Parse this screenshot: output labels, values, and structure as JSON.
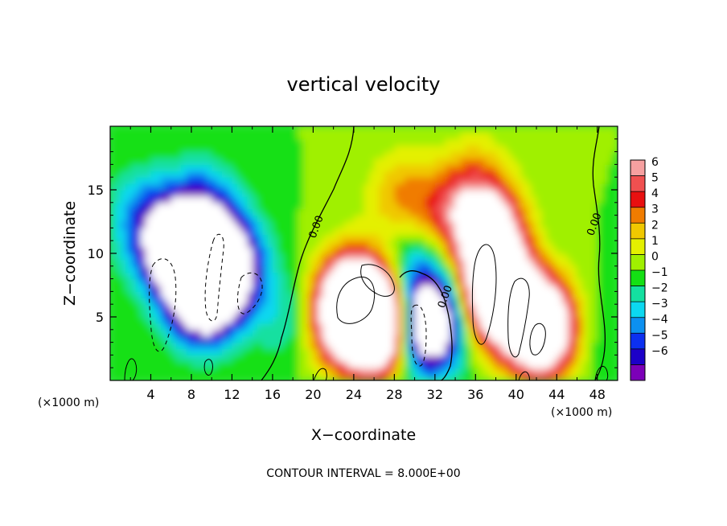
{
  "chart_data": {
    "type": "heatmap",
    "title": "vertical velocity",
    "xlabel": "X−coordinate",
    "ylabel": "Z−coordinate",
    "x_unit_left": "(×1000 m)",
    "x_unit_right": "(×1000 m)",
    "xlim": [
      0,
      50
    ],
    "ylim": [
      0,
      20
    ],
    "x_ticks": [
      4,
      8,
      12,
      16,
      20,
      24,
      28,
      32,
      36,
      40,
      44,
      48
    ],
    "x_tick_labels": [
      "4",
      "8",
      "12",
      "16",
      "20",
      "24",
      "28",
      "32",
      "36",
      "40",
      "44",
      "48"
    ],
    "y_ticks": [
      5,
      10,
      15
    ],
    "y_tick_labels": [
      "5",
      "10",
      "15"
    ],
    "contour_label": "0.00",
    "contour_labels": [
      {
        "x": 20.6,
        "y": 12.0,
        "text": "0.00"
      },
      {
        "x": 33.3,
        "y": 6.5,
        "text": "0.00"
      },
      {
        "x": 48.0,
        "y": 12.2,
        "text": "0.00"
      }
    ],
    "footer": "CONTOUR INTERVAL = 8.000E+00",
    "colorbar": {
      "levels": [
        6,
        5,
        4,
        3,
        2,
        1,
        0,
        -1,
        -2,
        -3,
        -4,
        -5,
        -6
      ],
      "labels": [
        "6",
        "5",
        "4",
        "3",
        "2",
        "1",
        "0",
        "−1",
        "−2",
        "−3",
        "−4",
        "−5",
        "−6"
      ],
      "colors": [
        "#f6a0a0",
        "#f05050",
        "#e81010",
        "#f07c00",
        "#f0c800",
        "#e4f000",
        "#a0f000",
        "#14e014",
        "#14e0a0",
        "#0cd8f0",
        "#0c90f0",
        "#0c30f0",
        "#1c00c8",
        "#7c00b8"
      ]
    },
    "features": [
      {
        "x": 9,
        "y": 7,
        "w": -14
      },
      {
        "x": 11.5,
        "y": 9,
        "w": -12
      },
      {
        "x": 6,
        "y": 10.5,
        "w": -10
      },
      {
        "x": 9,
        "y": 13,
        "w": -6
      },
      {
        "x": 3,
        "y": 13,
        "w": -3
      },
      {
        "x": 24,
        "y": 6.5,
        "w": 12
      },
      {
        "x": 26,
        "y": 4,
        "w": 10
      },
      {
        "x": 22.3,
        "y": 4.5,
        "w": 5
      },
      {
        "x": 27.5,
        "y": 5,
        "w": 6
      },
      {
        "x": 31.2,
        "y": 4.5,
        "w": -14
      },
      {
        "x": 30,
        "y": 9,
        "w": -3
      },
      {
        "x": 38,
        "y": 7,
        "w": 14
      },
      {
        "x": 41.5,
        "y": 4.5,
        "w": 11
      },
      {
        "x": 37.5,
        "y": 11.5,
        "w": 10
      },
      {
        "x": 33,
        "y": 13,
        "w": 4
      },
      {
        "x": 43.5,
        "y": 4,
        "w": 7
      },
      {
        "x": 28.5,
        "y": 14.5,
        "w": 3
      },
      {
        "x": 36,
        "y": 15.5,
        "w": 3
      },
      {
        "x": 17.5,
        "y": 5,
        "w": -2
      },
      {
        "x": 47,
        "y": 4,
        "w": -1.5
      }
    ]
  }
}
